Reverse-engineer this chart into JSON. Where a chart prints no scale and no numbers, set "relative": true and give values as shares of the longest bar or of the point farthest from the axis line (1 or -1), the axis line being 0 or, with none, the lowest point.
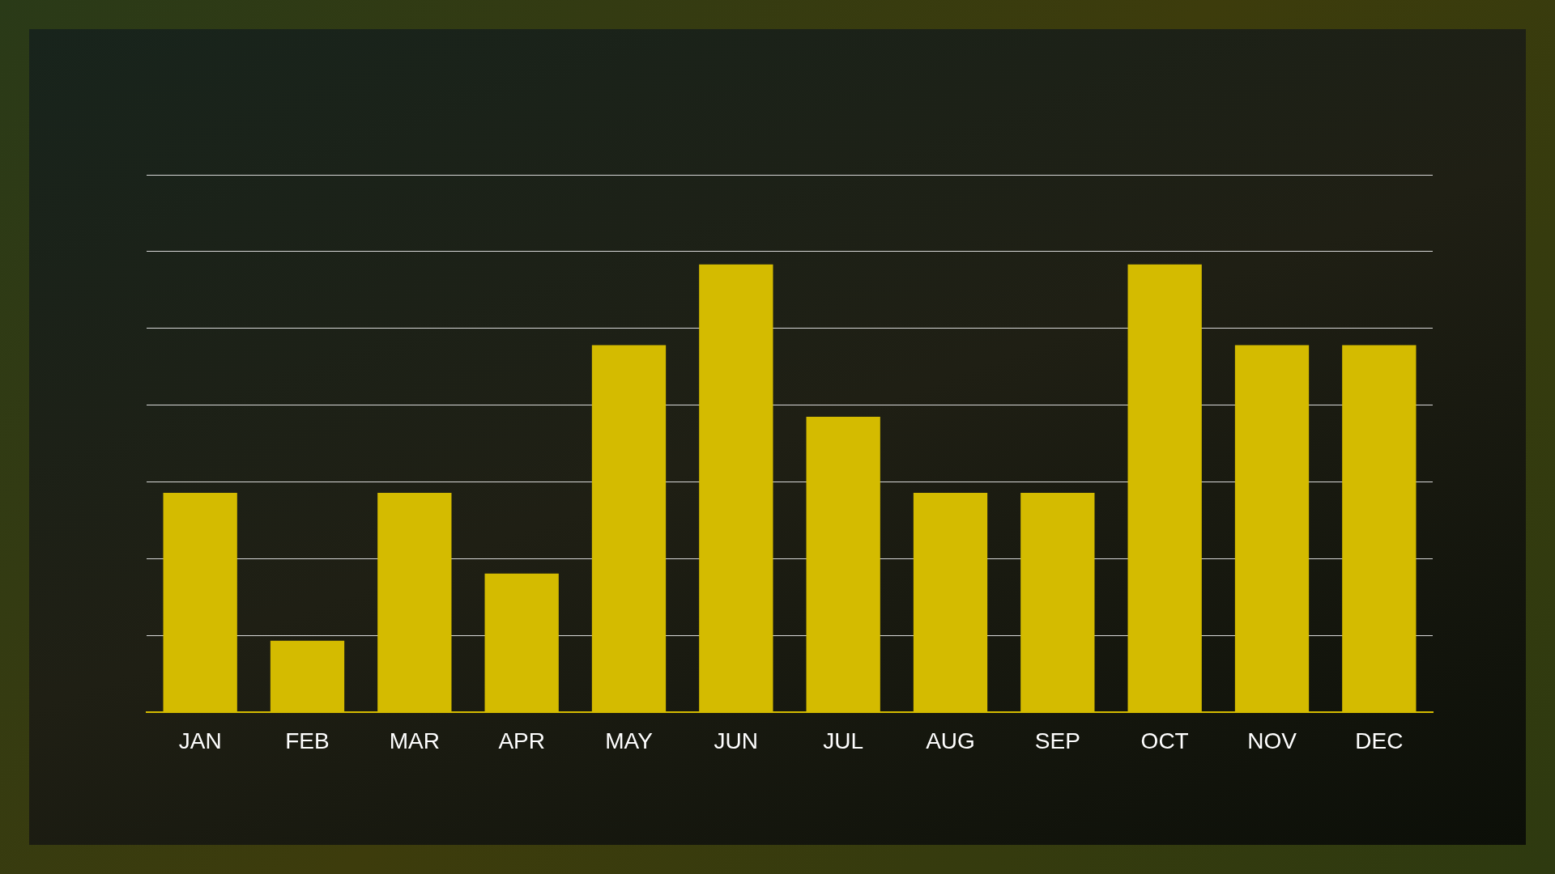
{
  "chart_data": {
    "type": "bar",
    "relative": true,
    "categories": [
      "JAN",
      "FEB",
      "MAR",
      "APR",
      "MAY",
      "JUN",
      "JUL",
      "AUG",
      "SEP",
      "OCT",
      "NOV",
      "DEC"
    ],
    "values": [
      0.49,
      0.16,
      0.49,
      0.31,
      0.82,
      1,
      0.66,
      0.49,
      0.49,
      1,
      0.82,
      0.82
    ],
    "color": "#d4bb00",
    "grid": "y"
  }
}
